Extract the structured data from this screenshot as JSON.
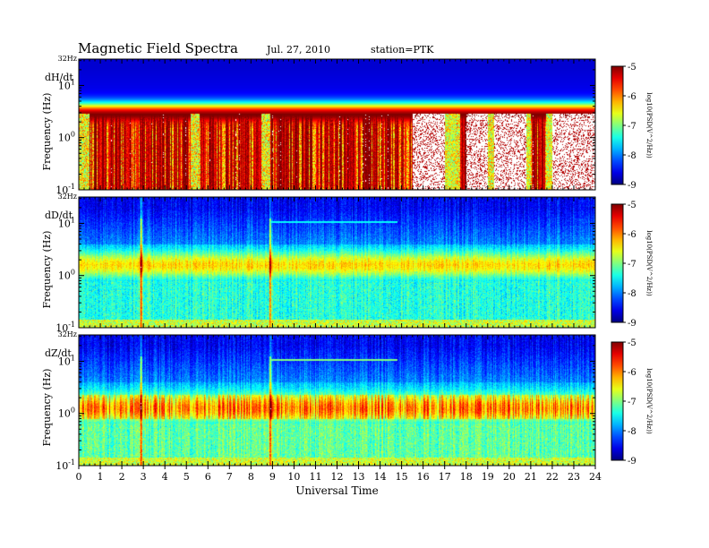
{
  "header": {
    "title": "Magnetic  Field  Spectra",
    "date": "Jul.  27, 2010",
    "station": "station=PTK"
  },
  "chart_data": [
    {
      "type": "heatmap",
      "panel": "dH/dt",
      "title": "dH/dt",
      "ylabel": "Frequency (Hz)",
      "ylog": true,
      "ylim": [
        0.1,
        32
      ],
      "yticks": [
        {
          "value": 0.1,
          "base": "10",
          "exp": "-1"
        },
        {
          "value": 1,
          "base": "10",
          "exp": "0"
        },
        {
          "value": 10,
          "base": "10",
          "exp": "1"
        }
      ],
      "ytop_label": "32Hz",
      "xlim": [
        0,
        24
      ],
      "colorbar": {
        "label": "log10(PSD(V^2/Hz))",
        "range": [
          -9,
          -5
        ],
        "ticks": [
          -5,
          -6,
          -7,
          -8,
          -9
        ]
      },
      "features": {
        "band_center_log": 0.45,
        "band_width": 0.21,
        "lowfreq_red_intervals": [
          [
            0.5,
            5.2
          ],
          [
            5.6,
            8.5
          ],
          [
            8.9,
            17.0
          ],
          [
            17.7,
            19.0
          ],
          [
            19.3,
            20.8
          ],
          [
            21.0,
            21.7
          ],
          [
            22.0,
            24.0
          ]
        ],
        "gaps": [
          [
            17.1,
            17.5
          ],
          [
            20.8,
            21.0
          ],
          [
            21.7,
            22.0
          ]
        ]
      }
    },
    {
      "type": "heatmap",
      "panel": "dD/dt",
      "title": "dD/dt",
      "ylabel": "Frequency (Hz)",
      "ylog": true,
      "ylim": [
        0.1,
        32
      ],
      "yticks": [
        {
          "value": 0.1,
          "base": "10",
          "exp": "-1"
        },
        {
          "value": 1,
          "base": "10",
          "exp": "0"
        },
        {
          "value": 10,
          "base": "10",
          "exp": "1"
        }
      ],
      "ytop_label": "32Hz",
      "xlim": [
        0,
        24
      ],
      "colorbar": {
        "label": "log10(PSD(V^2/Hz))",
        "range": [
          -9,
          -5
        ],
        "ticks": [
          -5,
          -6,
          -7,
          -8,
          -9
        ]
      },
      "features": {
        "band_center_log": 0.2,
        "band_width": 0.26,
        "pc1_line": {
          "t_start": 8.9,
          "t_end": 14.8,
          "freq": 10.5
        },
        "spikes_hours": [
          2.9,
          8.9
        ]
      }
    },
    {
      "type": "heatmap",
      "panel": "dZ/dt",
      "title": "dZ/dt",
      "ylabel": "Frequency (Hz)",
      "ylog": true,
      "ylim": [
        0.1,
        32
      ],
      "yticks": [
        {
          "value": 0.1,
          "base": "10",
          "exp": "-1"
        },
        {
          "value": 1,
          "base": "10",
          "exp": "0"
        },
        {
          "value": 10,
          "base": "10",
          "exp": "1"
        }
      ],
      "ytop_label": "32Hz",
      "xlim": [
        0,
        24
      ],
      "xticks": [
        0,
        1,
        2,
        3,
        4,
        5,
        6,
        7,
        8,
        9,
        10,
        11,
        12,
        13,
        14,
        15,
        16,
        17,
        18,
        19,
        20,
        21,
        22,
        23,
        24
      ],
      "xlabel": "Universal Time",
      "colorbar": {
        "label": "log10(PSD(V^2/Hz))",
        "range": [
          -9,
          -5
        ],
        "ticks": [
          -5,
          -6,
          -7,
          -8,
          -9
        ]
      },
      "features": {
        "band_center_log": 0.1,
        "band_width": 0.3,
        "pc1_line": {
          "t_start": 8.9,
          "t_end": 14.8,
          "freq": 10.5
        },
        "spikes_hours": [
          2.9,
          8.9
        ]
      }
    }
  ]
}
